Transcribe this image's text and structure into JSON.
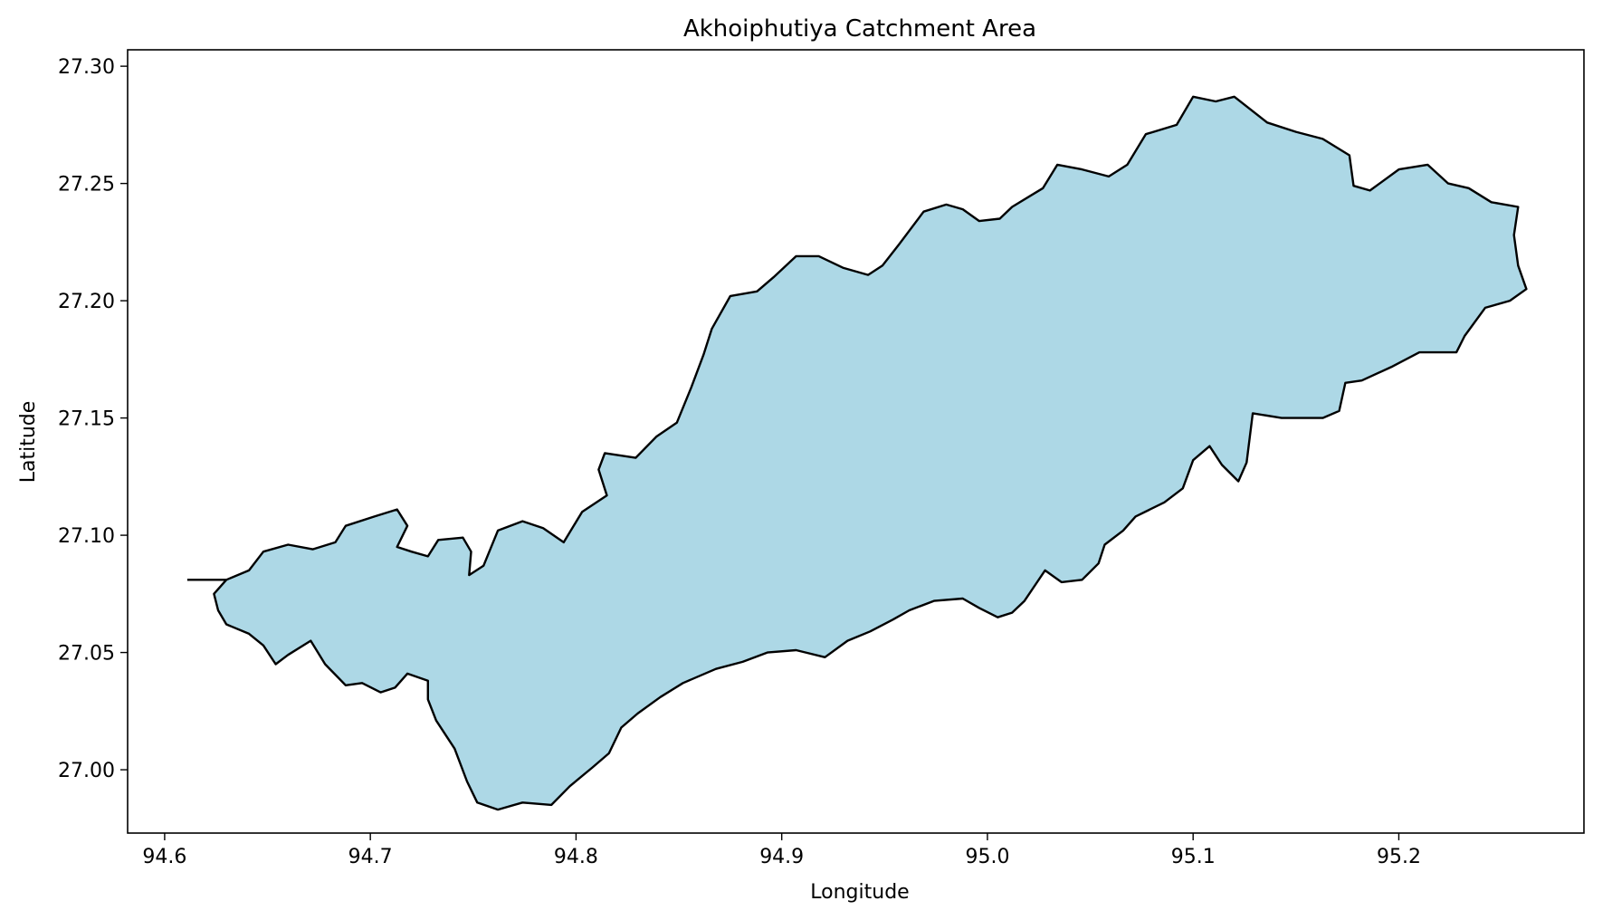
{
  "chart_data": {
    "type": "area",
    "title": "Akhoiphutiya Catchment Area",
    "xlabel": "Longitude",
    "ylabel": "Latitude",
    "xlim": [
      94.582,
      95.29
    ],
    "ylim": [
      26.973,
      27.307
    ],
    "xticks": [
      94.6,
      94.7,
      94.8,
      94.9,
      95.0,
      95.1,
      95.2
    ],
    "xtick_labels": [
      "94.6",
      "94.7",
      "94.8",
      "94.9",
      "95.0",
      "95.1",
      "95.2"
    ],
    "yticks": [
      27.0,
      27.05,
      27.1,
      27.15,
      27.2,
      27.25,
      27.3
    ],
    "ytick_labels": [
      "27.00",
      "27.05",
      "27.10",
      "27.15",
      "27.20",
      "27.25",
      "27.30"
    ],
    "grid": false,
    "fill_color": "#add8e6",
    "edge_color": "#000000",
    "spur": [
      [
        94.611,
        27.081
      ],
      [
        94.63,
        27.081
      ]
    ],
    "boundary": [
      [
        94.63,
        27.081
      ],
      [
        94.641,
        27.085
      ],
      [
        94.648,
        27.093
      ],
      [
        94.66,
        27.096
      ],
      [
        94.672,
        27.094
      ],
      [
        94.683,
        27.097
      ],
      [
        94.688,
        27.104
      ],
      [
        94.702,
        27.108
      ],
      [
        94.713,
        27.111
      ],
      [
        94.718,
        27.104
      ],
      [
        94.713,
        27.095
      ],
      [
        94.72,
        27.093
      ],
      [
        94.728,
        27.091
      ],
      [
        94.733,
        27.098
      ],
      [
        94.745,
        27.099
      ],
      [
        94.749,
        27.093
      ],
      [
        94.748,
        27.083
      ],
      [
        94.755,
        27.087
      ],
      [
        94.762,
        27.102
      ],
      [
        94.774,
        27.106
      ],
      [
        94.784,
        27.103
      ],
      [
        94.794,
        27.097
      ],
      [
        94.803,
        27.11
      ],
      [
        94.815,
        27.117
      ],
      [
        94.811,
        27.128
      ],
      [
        94.814,
        27.135
      ],
      [
        94.829,
        27.133
      ],
      [
        94.839,
        27.142
      ],
      [
        94.849,
        27.148
      ],
      [
        94.856,
        27.163
      ],
      [
        94.862,
        27.177
      ],
      [
        94.866,
        27.188
      ],
      [
        94.875,
        27.202
      ],
      [
        94.888,
        27.204
      ],
      [
        94.896,
        27.21
      ],
      [
        94.907,
        27.219
      ],
      [
        94.918,
        27.219
      ],
      [
        94.93,
        27.214
      ],
      [
        94.942,
        27.211
      ],
      [
        94.949,
        27.215
      ],
      [
        94.957,
        27.224
      ],
      [
        94.969,
        27.238
      ],
      [
        94.98,
        27.241
      ],
      [
        94.988,
        27.239
      ],
      [
        94.996,
        27.234
      ],
      [
        95.006,
        27.235
      ],
      [
        95.012,
        27.24
      ],
      [
        95.027,
        27.248
      ],
      [
        95.034,
        27.258
      ],
      [
        95.046,
        27.256
      ],
      [
        95.059,
        27.253
      ],
      [
        95.068,
        27.258
      ],
      [
        95.077,
        27.271
      ],
      [
        95.092,
        27.275
      ],
      [
        95.1,
        27.287
      ],
      [
        95.111,
        27.285
      ],
      [
        95.12,
        27.287
      ],
      [
        95.136,
        27.276
      ],
      [
        95.15,
        27.272
      ],
      [
        95.163,
        27.269
      ],
      [
        95.176,
        27.262
      ],
      [
        95.178,
        27.249
      ],
      [
        95.186,
        27.247
      ],
      [
        95.2,
        27.256
      ],
      [
        95.214,
        27.258
      ],
      [
        95.224,
        27.25
      ],
      [
        95.234,
        27.248
      ],
      [
        95.245,
        27.242
      ],
      [
        95.258,
        27.24
      ],
      [
        95.256,
        27.228
      ],
      [
        95.258,
        27.215
      ],
      [
        95.262,
        27.205
      ],
      [
        95.254,
        27.2
      ],
      [
        95.242,
        27.197
      ],
      [
        95.232,
        27.185
      ],
      [
        95.228,
        27.178
      ],
      [
        95.21,
        27.178
      ],
      [
        95.197,
        27.172
      ],
      [
        95.182,
        27.166
      ],
      [
        95.174,
        27.165
      ],
      [
        95.171,
        27.153
      ],
      [
        95.163,
        27.15
      ],
      [
        95.143,
        27.15
      ],
      [
        95.129,
        27.152
      ],
      [
        95.126,
        27.131
      ],
      [
        95.122,
        27.123
      ],
      [
        95.114,
        27.13
      ],
      [
        95.108,
        27.138
      ],
      [
        95.1,
        27.132
      ],
      [
        95.095,
        27.12
      ],
      [
        95.086,
        27.114
      ],
      [
        95.072,
        27.108
      ],
      [
        95.066,
        27.102
      ],
      [
        95.057,
        27.096
      ],
      [
        95.054,
        27.088
      ],
      [
        95.046,
        27.081
      ],
      [
        95.036,
        27.08
      ],
      [
        95.028,
        27.085
      ],
      [
        95.018,
        27.072
      ],
      [
        95.012,
        27.067
      ],
      [
        95.005,
        27.065
      ],
      [
        94.996,
        27.069
      ],
      [
        94.988,
        27.073
      ],
      [
        94.974,
        27.072
      ],
      [
        94.962,
        27.068
      ],
      [
        94.954,
        27.064
      ],
      [
        94.943,
        27.059
      ],
      [
        94.932,
        27.055
      ],
      [
        94.921,
        27.048
      ],
      [
        94.907,
        27.051
      ],
      [
        94.893,
        27.05
      ],
      [
        94.881,
        27.046
      ],
      [
        94.868,
        27.043
      ],
      [
        94.852,
        27.037
      ],
      [
        94.841,
        27.031
      ],
      [
        94.83,
        27.024
      ],
      [
        94.822,
        27.018
      ],
      [
        94.816,
        27.007
      ],
      [
        94.808,
        27.001
      ],
      [
        94.797,
        26.993
      ],
      [
        94.788,
        26.985
      ],
      [
        94.774,
        26.986
      ],
      [
        94.762,
        26.983
      ],
      [
        94.752,
        26.986
      ],
      [
        94.747,
        26.995
      ],
      [
        94.741,
        27.009
      ],
      [
        94.732,
        27.021
      ],
      [
        94.728,
        27.03
      ],
      [
        94.728,
        27.038
      ],
      [
        94.718,
        27.041
      ],
      [
        94.712,
        27.035
      ],
      [
        94.705,
        27.033
      ],
      [
        94.696,
        27.037
      ],
      [
        94.688,
        27.036
      ],
      [
        94.678,
        27.045
      ],
      [
        94.671,
        27.055
      ],
      [
        94.66,
        27.049
      ],
      [
        94.654,
        27.045
      ],
      [
        94.648,
        27.053
      ],
      [
        94.641,
        27.058
      ],
      [
        94.63,
        27.062
      ],
      [
        94.626,
        27.068
      ],
      [
        94.624,
        27.075
      ],
      [
        94.63,
        27.081
      ]
    ]
  }
}
